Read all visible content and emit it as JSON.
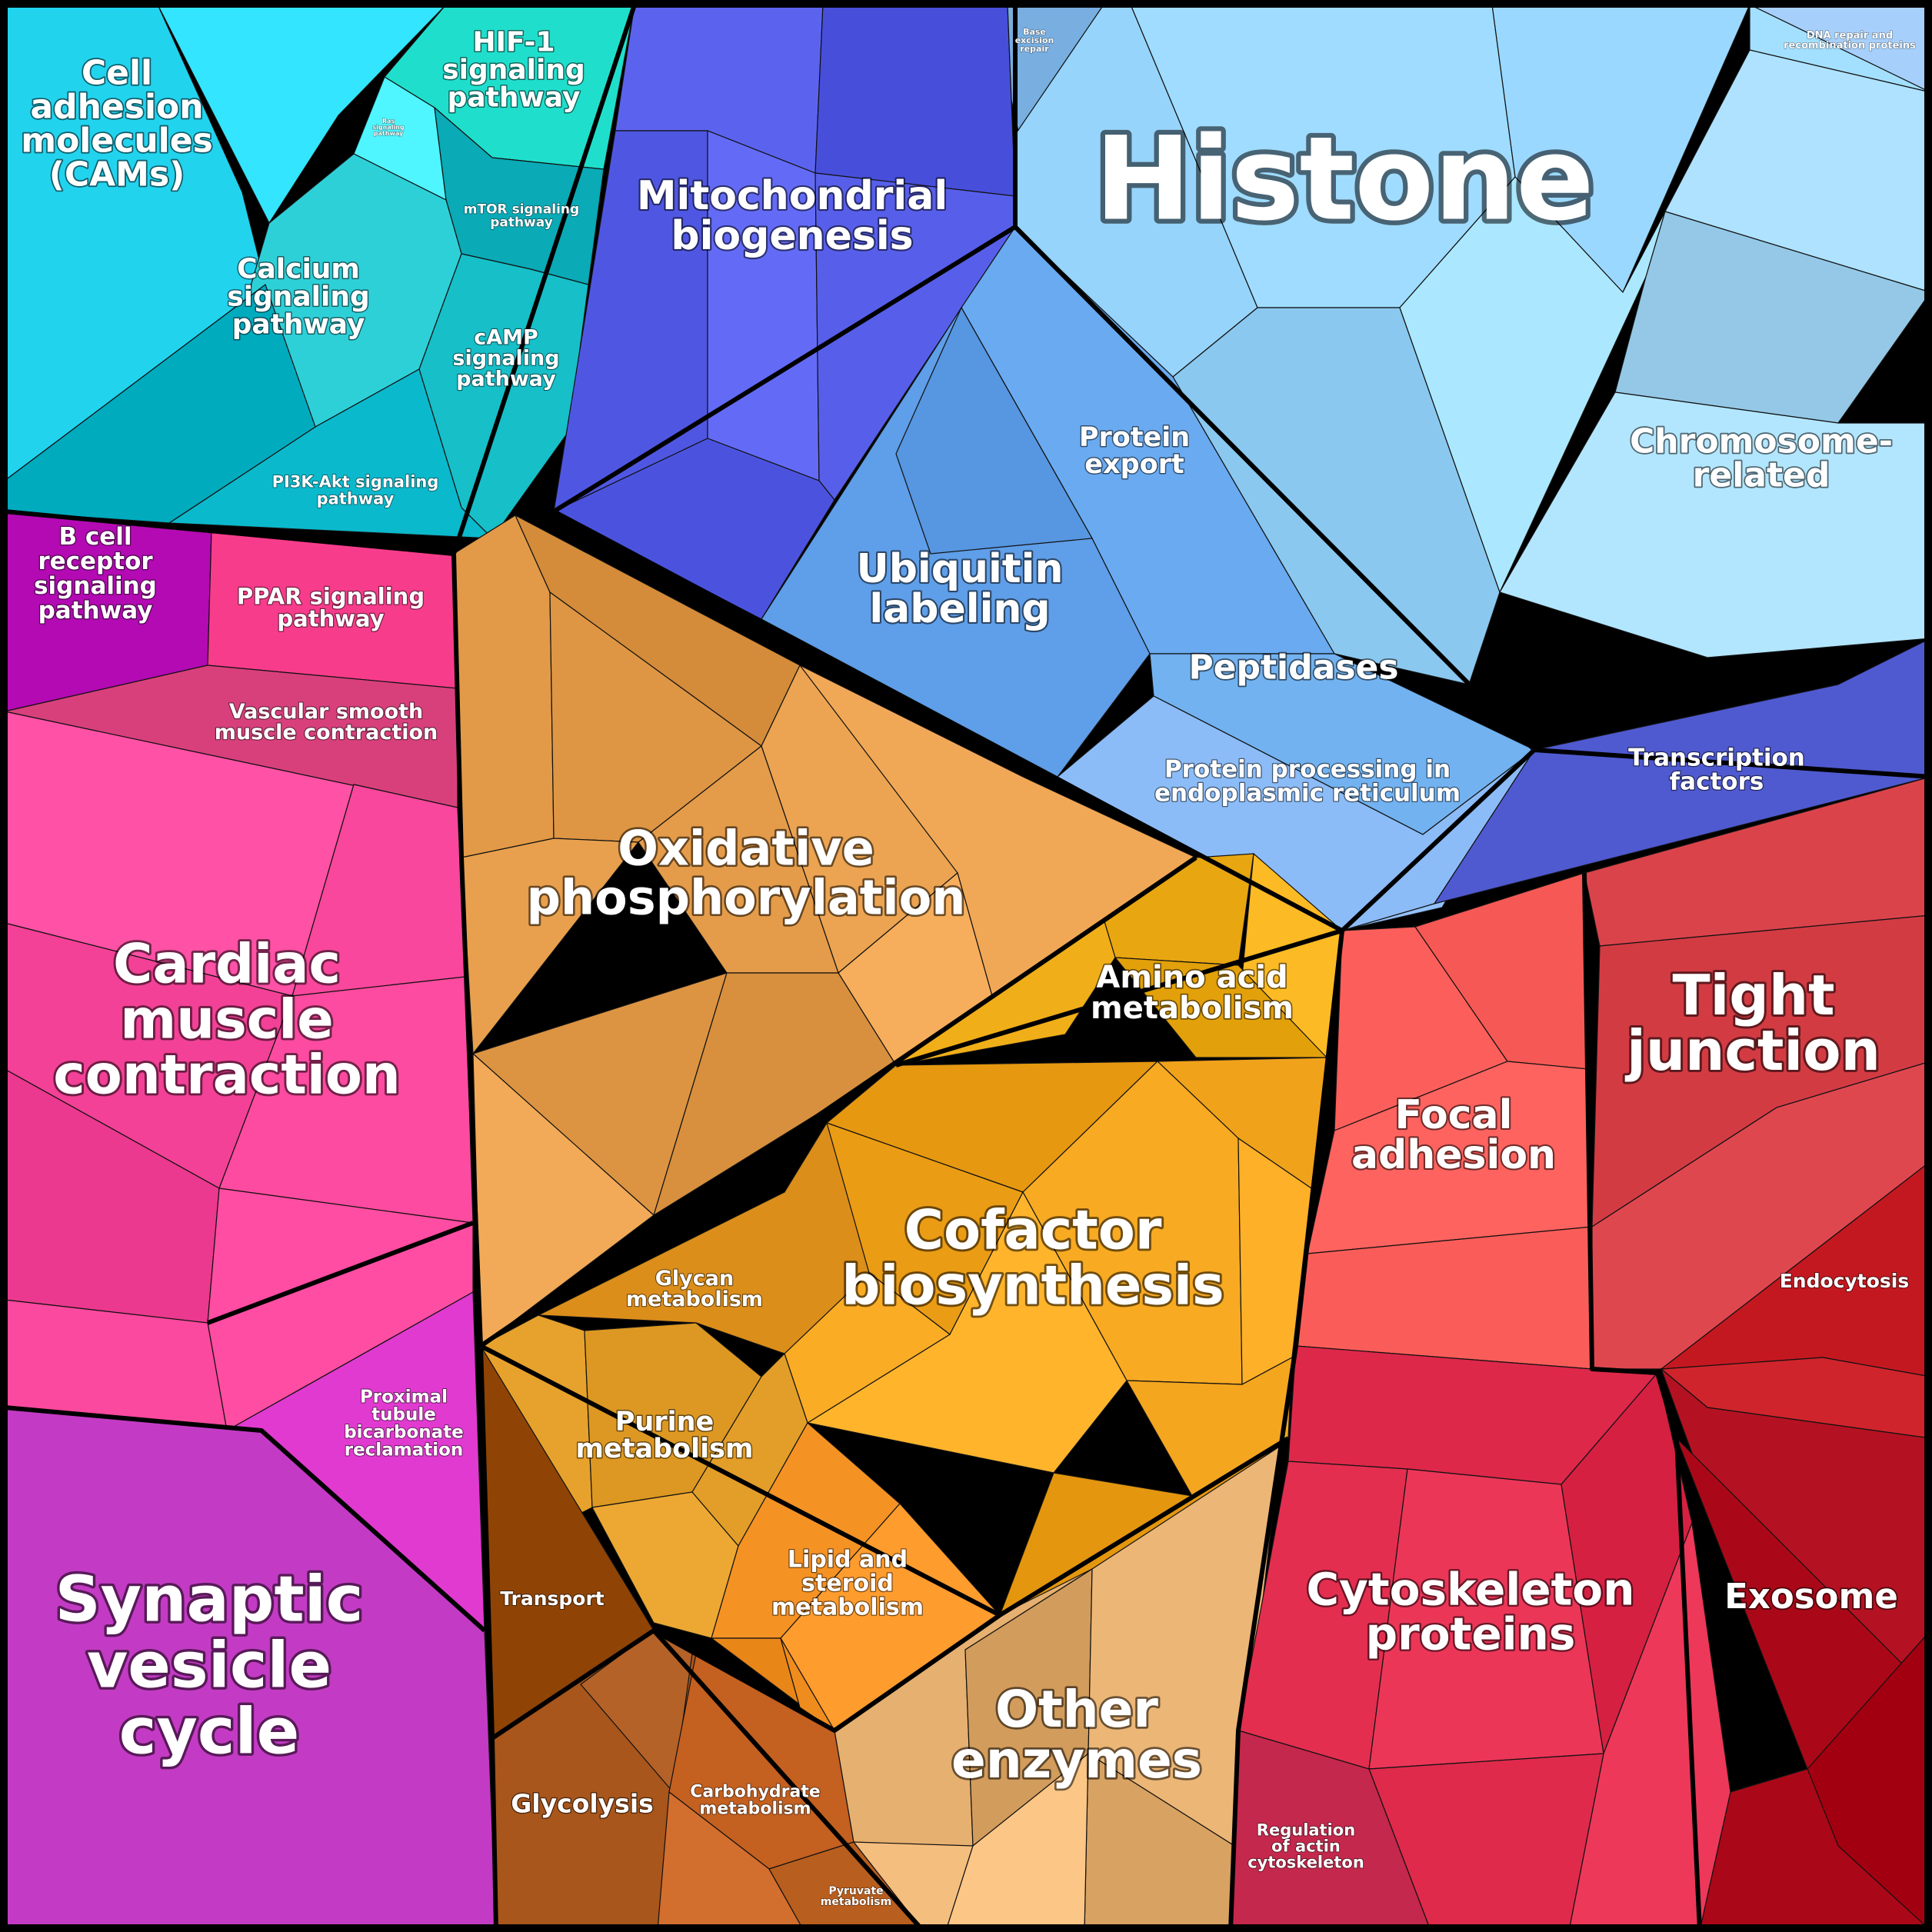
{
  "diagram": {
    "type": "voronoi-treemap",
    "categories": {
      "cams": {
        "label": "Cell adhesion molecules (CAMs)",
        "color": "#22d3ee"
      },
      "hif1": {
        "label": "HIF-1 signaling pathway",
        "color": "#1fdfcc"
      },
      "ras": {
        "label": "Ras signaling pathway",
        "color": "#4ff5ff"
      },
      "mtor": {
        "label": "mTOR signaling pathway",
        "color": "#14b4c0"
      },
      "calcium": {
        "label": "Calcium signaling pathway",
        "color": "#2ed0d8"
      },
      "camp": {
        "label": "cAMP signaling pathway",
        "color": "#17bfc8"
      },
      "pi3k": {
        "label": "PI3K-Akt signaling pathway",
        "color": "#0bb9cc"
      },
      "mito": {
        "label": "Mitochondrial biogenesis",
        "color": "#5b63ee"
      },
      "ber": {
        "label": "Base excision repair",
        "color": "#78aee0"
      },
      "histone": {
        "label": "Histone",
        "color": "#97d4fb"
      },
      "dnarepair": {
        "label": "DNA repair and recombination proteins",
        "color": "#a6d0fb"
      },
      "chromosome": {
        "label": "Chromosome-related",
        "color": "#a8dcfa"
      },
      "protexport": {
        "label": "Protein export",
        "color": "#6aaaf0"
      },
      "ubiquitin": {
        "label": "Ubiquitin labeling",
        "color": "#5f9ee8"
      },
      "peptidases": {
        "label": "Peptidases",
        "color": "#72b2f0"
      },
      "er": {
        "label": "Protein processing in endoplasmic reticulum",
        "color": "#8cbcf7"
      },
      "tf": {
        "label": "Transcription factors",
        "color": "#4f5ad0"
      },
      "bcell": {
        "label": "B cell receptor signaling pathway",
        "color": "#b30ab3"
      },
      "ppar": {
        "label": "PPAR signaling pathway",
        "color": "#f83c8c"
      },
      "vsmc": {
        "label": "Vascular smooth muscle contraction",
        "color": "#d8407c"
      },
      "cardiac": {
        "label": "Cardiac muscle contraction",
        "color": "#f8479c"
      },
      "proximal": {
        "label": "Proximal tubule bicarbonate reclamation",
        "color": "#e13ad0"
      },
      "synaptic": {
        "label": "Synaptic vesicle cycle",
        "color": "#c33bc4"
      },
      "oxphos": {
        "label": "Oxidative phosphorylation",
        "color": "#e29a48"
      },
      "aminoacid": {
        "label": "Amino acid metabolism",
        "color": "#e8a610"
      },
      "cofactor": {
        "label": "Cofactor biosynthesis",
        "color": "#f0a21a"
      },
      "glycan": {
        "label": "Glycan metabolism",
        "color": "#dc8e1a"
      },
      "purine": {
        "label": "Purine metabolism",
        "color": "#e6a22c"
      },
      "lipid": {
        "label": "Lipid and steroid metabolism",
        "color": "#f49224"
      },
      "transport": {
        "label": "Transport",
        "color": "#8f4405"
      },
      "glycolysis": {
        "label": "Glycolysis",
        "color": "#a8561c"
      },
      "carb": {
        "label": "Carbohydrate metabolism",
        "color": "#c46020"
      },
      "pyruvate": {
        "label": "Pyruvate metabolism",
        "color": "#b85e1e"
      },
      "other": {
        "label": "Other enzymes",
        "color": "#e6b070"
      },
      "focal": {
        "label": "Focal adhesion",
        "color": "#fc5f5b"
      },
      "tight": {
        "label": "Tight junction",
        "color": "#db434b"
      },
      "endocytosis": {
        "label": "Endocytosis",
        "color": "#c41820"
      },
      "exosome": {
        "label": "Exosome",
        "color": "#aa0818"
      },
      "cyto": {
        "label": "Cytoskeleton proteins",
        "color": "#e32e50"
      },
      "actin": {
        "label": "Regulation of actin cytoskeleton",
        "color": "#c4284c"
      }
    }
  },
  "labels": {
    "cams": [
      "Cell",
      "adhesion",
      "molecules",
      "(CAMs)"
    ],
    "hif1": [
      "HIF-1",
      "signaling",
      "pathway"
    ],
    "ras": [
      "Ras",
      "signaling",
      "pathway"
    ],
    "mtor": [
      "mTOR signaling",
      "pathway"
    ],
    "calcium": [
      "Calcium",
      "signaling",
      "pathway"
    ],
    "camp": [
      "cAMP",
      "signaling",
      "pathway"
    ],
    "pi3k": [
      "PI3K-Akt signaling",
      "pathway"
    ],
    "mito": [
      "Mitochondrial",
      "biogenesis"
    ],
    "ber": [
      "Base",
      "excision",
      "repair"
    ],
    "histone": [
      "Histone"
    ],
    "dnarepair": [
      "DNA repair and",
      "recombination proteins"
    ],
    "chromosome": [
      "Chromosome-",
      "related"
    ],
    "protexport": [
      "Protein",
      "export"
    ],
    "ubiquitin": [
      "Ubiquitin",
      "labeling"
    ],
    "peptidases": [
      "Peptidases"
    ],
    "er": [
      "Protein processing in",
      "endoplasmic reticulum"
    ],
    "tf": [
      "Transcription",
      "factors"
    ],
    "bcell": [
      "B cell",
      "receptor",
      "signaling",
      "pathway"
    ],
    "ppar": [
      "PPAR signaling",
      "pathway"
    ],
    "vsmc": [
      "Vascular smooth",
      "muscle contraction"
    ],
    "cardiac": [
      "Cardiac",
      "muscle",
      "contraction"
    ],
    "proximal": [
      "Proximal",
      "tubule",
      "bicarbonate",
      "reclamation"
    ],
    "synaptic": [
      "Synaptic",
      "vesicle",
      "cycle"
    ],
    "oxphos": [
      "Oxidative",
      "phosphorylation"
    ],
    "aminoacid": [
      "Amino acid",
      "metabolism"
    ],
    "cofactor": [
      "Cofactor",
      "biosynthesis"
    ],
    "glycan": [
      "Glycan",
      "metabolism"
    ],
    "purine": [
      "Purine",
      "metabolism"
    ],
    "lipid": [
      "Lipid and",
      "steroid",
      "metabolism"
    ],
    "transport": [
      "Transport"
    ],
    "glycolysis": [
      "Glycolysis"
    ],
    "carb": [
      "Carbohydrate",
      "metabolism"
    ],
    "pyruvate": [
      "Pyruvate",
      "metabolism"
    ],
    "other": [
      "Other",
      "enzymes"
    ],
    "focal": [
      "Focal",
      "adhesion"
    ],
    "tight": [
      "Tight",
      "junction"
    ],
    "endocytosis": [
      "Endocytosis"
    ],
    "exosome": [
      "Exosome"
    ],
    "cyto": [
      "Cytoskeleton",
      "proteins"
    ],
    "actin": [
      "Regulation",
      "of actin",
      "cytoskeleton"
    ]
  }
}
